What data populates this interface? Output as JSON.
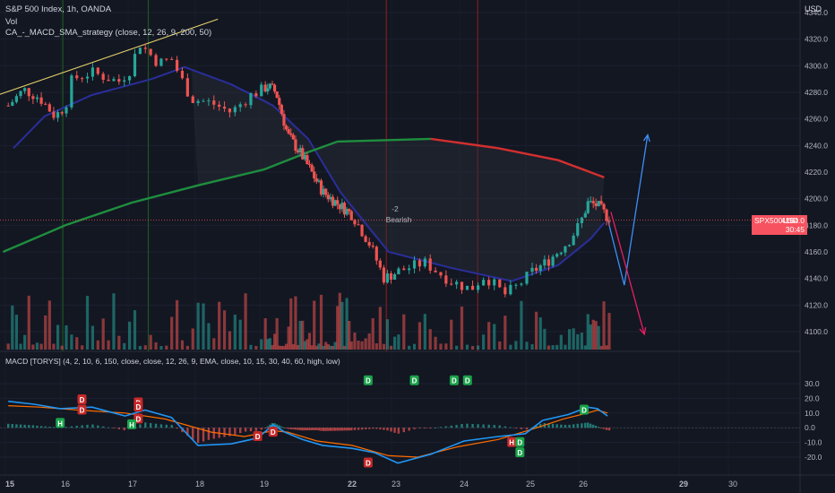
{
  "header": {
    "symbol_line": "S&P 500 Index, 1h, OANDA",
    "vol_label": "Vol",
    "strategy_label": "CA_-_MACD_SMA_strategy (close, 12, 26, 9, 200, 50)",
    "macd_label": "MACD [TORYS] (4, 2, 10, 6, 150, close, close, 12, 26, 9, EMA, close, 10, 15, 30, 40, 60, high, low)"
  },
  "currency": "USD",
  "price_tag": {
    "symbol": "SPX500USD",
    "value": "4184.0",
    "countdown": "30:45"
  },
  "annotation": {
    "count": "-2",
    "text": "Bearish"
  },
  "colors": {
    "background": "#131722",
    "up": "#26a69a",
    "down": "#ef5350",
    "sma200_up": "#1e8e3e",
    "sma200_down": "#d32f2f",
    "blue_line": "#2a2e9a",
    "projection_blue": "#3d8ff5",
    "projection_pink": "#e91e63",
    "trendline": "#e6d36b",
    "macd_line": "#2196f3",
    "signal_line": "#ff6d00"
  },
  "chart_data": [
    {
      "type": "candlestick",
      "title": "S&P 500 Index, 1h, OANDA",
      "x_tick_labels": [
        "15",
        "16",
        "17",
        "18",
        "19",
        "22",
        "23",
        "24",
        "25",
        "26",
        "29",
        "30"
      ],
      "y_tick_labels": [
        "4100.0",
        "4120.0",
        "4140.0",
        "4160.0",
        "4180.0",
        "4200.0",
        "4220.0",
        "4240.0",
        "4260.0",
        "4280.0",
        "4300.0",
        "4320.0",
        "4340.0"
      ],
      "ylim": [
        4090,
        4345
      ],
      "last_price": 4184.0,
      "close_path": [
        {
          "day": 14.9,
          "close": 4270
        },
        {
          "day": 15.2,
          "close": 4282
        },
        {
          "day": 15.5,
          "close": 4276
        },
        {
          "day": 15.8,
          "close": 4262
        },
        {
          "day": 16.0,
          "close": 4270
        },
        {
          "day": 16.1,
          "close": 4290
        },
        {
          "day": 16.4,
          "close": 4295
        },
        {
          "day": 16.8,
          "close": 4288
        },
        {
          "day": 17.0,
          "close": 4298
        },
        {
          "day": 17.1,
          "close": 4318
        },
        {
          "day": 17.4,
          "close": 4302
        },
        {
          "day": 17.6,
          "close": 4305
        },
        {
          "day": 17.9,
          "close": 4275
        },
        {
          "day": 18.2,
          "close": 4272
        },
        {
          "day": 18.5,
          "close": 4265
        },
        {
          "day": 18.8,
          "close": 4278
        },
        {
          "day": 19.1,
          "close": 4285
        },
        {
          "day": 19.4,
          "close": 4280
        },
        {
          "day": 19.8,
          "close": 4248
        },
        {
          "day": 20.3,
          "close": 4232
        },
        {
          "day": 21.0,
          "close": 4205
        },
        {
          "day": 22.0,
          "close": 4188
        },
        {
          "day": 22.4,
          "close": 4165
        },
        {
          "day": 22.7,
          "close": 4140
        },
        {
          "day": 23.1,
          "close": 4147
        },
        {
          "day": 23.4,
          "close": 4152
        },
        {
          "day": 23.8,
          "close": 4138
        },
        {
          "day": 24.1,
          "close": 4132
        },
        {
          "day": 24.3,
          "close": 4142
        },
        {
          "day": 24.6,
          "close": 4128
        },
        {
          "day": 24.8,
          "close": 4135
        },
        {
          "day": 25.0,
          "close": 4145
        },
        {
          "day": 25.3,
          "close": 4153
        },
        {
          "day": 25.7,
          "close": 4168
        },
        {
          "day": 25.9,
          "close": 4180
        },
        {
          "day": 26.1,
          "close": 4197
        },
        {
          "day": 26.4,
          "close": 4195
        },
        {
          "day": 26.7,
          "close": 4186
        }
      ],
      "sma200": [
        {
          "day": 14.8,
          "value": 4160
        },
        {
          "day": 16.0,
          "value": 4180
        },
        {
          "day": 17.0,
          "value": 4197
        },
        {
          "day": 18.0,
          "value": 4210
        },
        {
          "day": 19.0,
          "value": 4222
        },
        {
          "day": 20.5,
          "value": 4235
        },
        {
          "day": 21.5,
          "value": 4243
        },
        {
          "day": 23.5,
          "value": 4245
        },
        {
          "day": 24.5,
          "value": 4238
        },
        {
          "day": 25.5,
          "value": 4229
        },
        {
          "day": 26.6,
          "value": 4216
        }
      ],
      "sma50": [
        {
          "day": 15.0,
          "value": 4238
        },
        {
          "day": 15.6,
          "value": 4262
        },
        {
          "day": 16.4,
          "value": 4278
        },
        {
          "day": 17.3,
          "value": 4290
        },
        {
          "day": 17.8,
          "value": 4299
        },
        {
          "day": 18.5,
          "value": 4286
        },
        {
          "day": 19.3,
          "value": 4270
        },
        {
          "day": 20.5,
          "value": 4245
        },
        {
          "day": 21.6,
          "value": 4205
        },
        {
          "day": 22.8,
          "value": 4160
        },
        {
          "day": 23.8,
          "value": 4148
        },
        {
          "day": 24.7,
          "value": 4138
        },
        {
          "day": 25.5,
          "value": 4150
        },
        {
          "day": 26.2,
          "value": 4170
        },
        {
          "day": 26.6,
          "value": 4182
        }
      ],
      "trendline": [
        {
          "day": 14.7,
          "value": 4278
        },
        {
          "day": 18.3,
          "value": 4335
        }
      ],
      "projections": [
        {
          "color": "blue",
          "points": [
            {
              "day": 26.7,
              "value": 4185
            },
            {
              "day": 27.2,
              "value": 4135
            },
            {
              "day": 27.9,
              "value": 4248
            }
          ]
        },
        {
          "color": "pink",
          "points": [
            {
              "day": 26.8,
              "value": 4190
            },
            {
              "day": 27.8,
              "value": 4098
            }
          ]
        }
      ]
    },
    {
      "type": "line",
      "title": "MACD [TORYS] (4, 2, 10, 6, 150, close, close, 12, 26, 9, EMA, close, 10, 15, 30, 40, 60, high, low)",
      "y_tick_labels": [
        "-20.0",
        "-10.0",
        "0.0",
        "10.0",
        "20.0",
        "30.0"
      ],
      "ylim": [
        -28,
        32
      ],
      "series": [
        {
          "name": "MACD",
          "points": [
            {
              "day": 14.9,
              "value": 18
            },
            {
              "day": 15.4,
              "value": 16
            },
            {
              "day": 15.9,
              "value": 13
            },
            {
              "day": 16.4,
              "value": 14
            },
            {
              "day": 16.9,
              "value": 8
            },
            {
              "day": 17.2,
              "value": 12
            },
            {
              "day": 17.6,
              "value": 7
            },
            {
              "day": 18.0,
              "value": -12
            },
            {
              "day": 18.5,
              "value": -11
            },
            {
              "day": 18.9,
              "value": -7
            },
            {
              "day": 19.3,
              "value": 2
            },
            {
              "day": 19.7,
              "value": -3
            },
            {
              "day": 20.3,
              "value": -8
            },
            {
              "day": 21.0,
              "value": -12
            },
            {
              "day": 22.0,
              "value": -14
            },
            {
              "day": 22.5,
              "value": -17
            },
            {
              "day": 23.0,
              "value": -24
            },
            {
              "day": 23.5,
              "value": -18
            },
            {
              "day": 24.0,
              "value": -9
            },
            {
              "day": 24.5,
              "value": -6
            },
            {
              "day": 24.9,
              "value": -4
            },
            {
              "day": 25.2,
              "value": 5
            },
            {
              "day": 25.7,
              "value": 9
            },
            {
              "day": 26.1,
              "value": 14
            },
            {
              "day": 26.4,
              "value": 13
            },
            {
              "day": 26.7,
              "value": 8
            }
          ]
        },
        {
          "name": "Signal",
          "points": [
            {
              "day": 14.9,
              "value": 15
            },
            {
              "day": 15.5,
              "value": 14
            },
            {
              "day": 16.2,
              "value": 12
            },
            {
              "day": 16.9,
              "value": 10
            },
            {
              "day": 17.5,
              "value": 6
            },
            {
              "day": 18.2,
              "value": -3
            },
            {
              "day": 18.7,
              "value": -6
            },
            {
              "day": 19.3,
              "value": -2
            },
            {
              "day": 19.8,
              "value": -3
            },
            {
              "day": 20.8,
              "value": -9
            },
            {
              "day": 22.0,
              "value": -12
            },
            {
              "day": 22.8,
              "value": -19
            },
            {
              "day": 23.3,
              "value": -20
            },
            {
              "day": 23.9,
              "value": -13
            },
            {
              "day": 24.5,
              "value": -8
            },
            {
              "day": 25.0,
              "value": -1
            },
            {
              "day": 25.6,
              "value": 6
            },
            {
              "day": 26.1,
              "value": 10
            },
            {
              "day": 26.4,
              "value": 12
            },
            {
              "day": 26.7,
              "value": 10
            }
          ]
        }
      ],
      "signals": [
        {
          "label": "D",
          "kind": "sell",
          "day": 16.25,
          "value": 19
        },
        {
          "label": "D",
          "kind": "sell",
          "day": 16.25,
          "value": 12
        },
        {
          "label": "H",
          "kind": "buy",
          "day": 15.9,
          "value": 3
        },
        {
          "label": "D",
          "kind": "sell",
          "day": 17.1,
          "value": 17
        },
        {
          "label": "D",
          "kind": "sell",
          "day": 17.1,
          "value": 14
        },
        {
          "label": "D",
          "kind": "sell",
          "day": 17.1,
          "value": 6
        },
        {
          "label": "H",
          "kind": "buy",
          "day": 17.0,
          "value": 2
        },
        {
          "label": "D",
          "kind": "sell",
          "day": 18.9,
          "value": -6
        },
        {
          "label": "D",
          "kind": "sell",
          "day": 19.3,
          "value": -3
        },
        {
          "label": "D",
          "kind": "sell",
          "day": 22.35,
          "value": -24
        },
        {
          "label": "D",
          "kind": "buy",
          "day": 22.35,
          "value": 32
        },
        {
          "label": "D",
          "kind": "buy",
          "day": 23.25,
          "value": 32
        },
        {
          "label": "D",
          "kind": "buy",
          "day": 23.85,
          "value": 32
        },
        {
          "label": "D",
          "kind": "buy",
          "day": 24.05,
          "value": 32
        },
        {
          "label": "H",
          "kind": "sell",
          "day": 24.7,
          "value": -10
        },
        {
          "label": "D",
          "kind": "buy",
          "day": 24.82,
          "value": -10
        },
        {
          "label": "D",
          "kind": "buy",
          "day": 24.82,
          "value": -17
        },
        {
          "label": "D",
          "kind": "buy",
          "day": 26.0,
          "value": 12
        }
      ]
    }
  ]
}
